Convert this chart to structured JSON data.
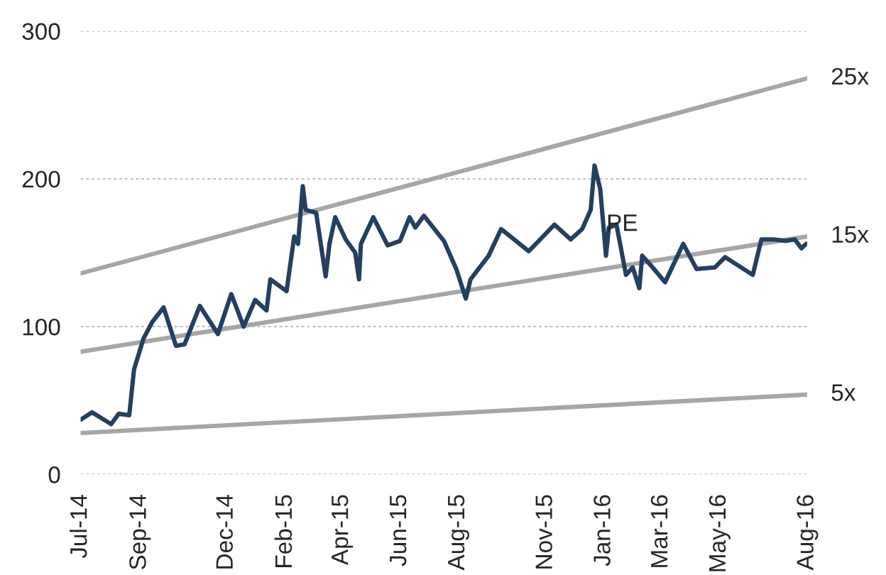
{
  "chart_data": {
    "type": "line",
    "xlim": [
      "2014-07-01",
      "2016-08-01"
    ],
    "xticks": [
      {
        "value": "2014-07-01",
        "label": "Jul-14"
      },
      {
        "value": "2014-09-01",
        "label": "Sep-14"
      },
      {
        "value": "2014-12-01",
        "label": "Dec-14"
      },
      {
        "value": "2015-02-01",
        "label": "Feb-15"
      },
      {
        "value": "2015-04-01",
        "label": "Apr-15"
      },
      {
        "value": "2015-06-01",
        "label": "Jun-15"
      },
      {
        "value": "2015-08-01",
        "label": "Aug-15"
      },
      {
        "value": "2015-11-01",
        "label": "Nov-15"
      },
      {
        "value": "2016-01-01",
        "label": "Jan-16"
      },
      {
        "value": "2016-03-01",
        "label": "Mar-16"
      },
      {
        "value": "2016-05-01",
        "label": "May-16"
      },
      {
        "value": "2016-08-01",
        "label": "Aug-16"
      }
    ],
    "ylim": [
      0,
      300
    ],
    "yticks": [
      0,
      100,
      200,
      300
    ],
    "grid": "y",
    "legend": false,
    "series": [
      {
        "name": "25x",
        "color": "#a6a6a6",
        "x": [
          "2014-07-01",
          "2016-08-01"
        ],
        "values": [
          136,
          268
        ]
      },
      {
        "name": "15x",
        "color": "#a6a6a6",
        "x": [
          "2014-07-01",
          "2016-08-01"
        ],
        "values": [
          83,
          161
        ]
      },
      {
        "name": "5x",
        "color": "#a6a6a6",
        "x": [
          "2014-07-01",
          "2016-08-01"
        ],
        "values": [
          28,
          54
        ]
      },
      {
        "name": "PE",
        "color": "#243f60",
        "x": [
          "2014-07-01",
          "2014-07-13",
          "2014-08-02",
          "2014-08-10",
          "2014-08-21",
          "2014-08-26",
          "2014-09-05",
          "2014-09-14",
          "2014-09-26",
          "2014-10-09",
          "2014-10-18",
          "2014-11-03",
          "2014-11-22",
          "2014-12-06",
          "2014-12-19",
          "2014-12-31",
          "2015-01-12",
          "2015-01-16",
          "2015-02-02",
          "2015-02-10",
          "2015-02-14",
          "2015-02-19",
          "2015-02-22",
          "2015-03-05",
          "2015-03-15",
          "2015-03-19",
          "2015-03-25",
          "2015-04-05",
          "2015-04-15",
          "2015-04-19",
          "2015-04-21",
          "2015-05-04",
          "2015-05-19",
          "2015-06-01",
          "2015-06-11",
          "2015-06-17",
          "2015-06-26",
          "2015-07-17",
          "2015-07-30",
          "2015-08-09",
          "2015-08-14",
          "2015-09-02",
          "2015-09-15",
          "2015-10-14",
          "2015-11-10",
          "2015-11-27",
          "2015-12-09",
          "2015-12-18",
          "2015-12-22",
          "2015-12-28",
          "2016-01-03",
          "2016-01-06",
          "2016-01-14",
          "2016-01-24",
          "2016-01-31",
          "2016-02-07",
          "2016-02-10",
          "2016-02-21",
          "2016-03-05",
          "2016-03-24",
          "2016-04-07",
          "2016-04-26",
          "2016-05-07",
          "2016-06-05",
          "2016-06-14",
          "2016-06-27",
          "2016-07-10",
          "2016-07-19",
          "2016-07-26",
          "2016-07-31"
        ],
        "values": [
          37,
          42,
          34,
          41,
          40,
          71,
          92,
          103,
          113,
          87,
          88,
          114,
          95,
          122,
          100,
          118,
          111,
          132,
          124,
          161,
          156,
          195,
          179,
          177,
          134,
          156,
          174,
          159,
          150,
          132,
          156,
          174,
          155,
          158,
          174,
          167,
          175,
          158,
          139,
          119,
          132,
          148,
          166,
          151,
          169,
          159,
          166,
          179,
          209,
          193,
          148,
          167,
          169,
          135,
          140,
          126,
          148,
          140,
          130,
          156,
          139,
          140,
          147,
          135,
          159,
          159,
          158,
          159,
          153,
          156
        ]
      }
    ]
  }
}
